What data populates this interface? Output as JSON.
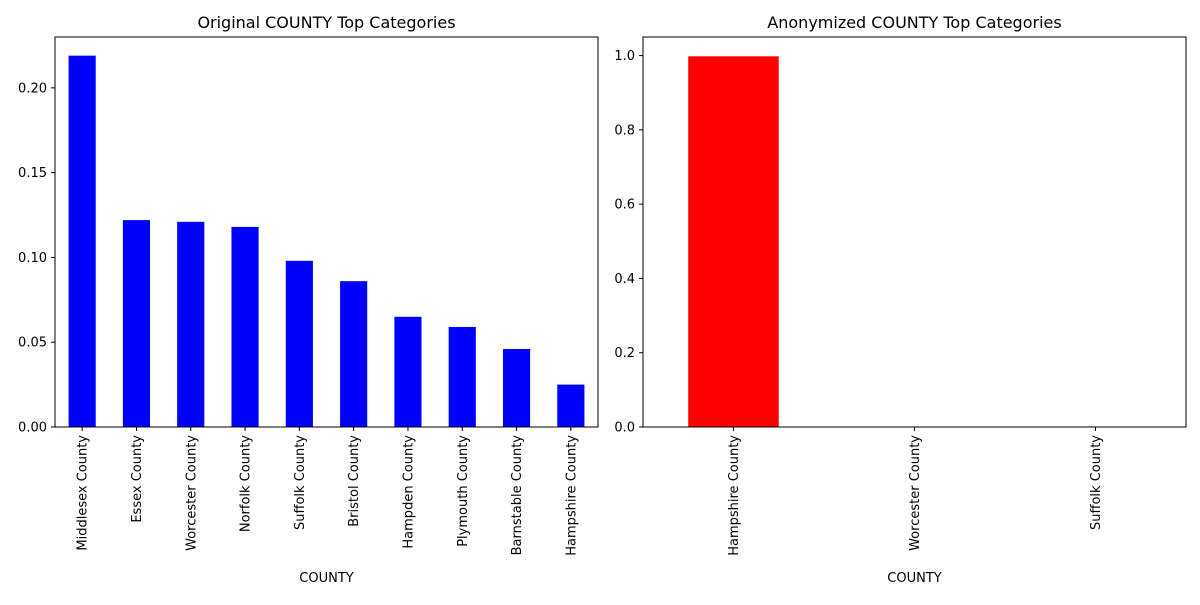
{
  "chart_data": [
    {
      "type": "bar",
      "title": "Original COUNTY Top Categories",
      "xlabel": "COUNTY",
      "ylabel": "",
      "color": "#0000ff",
      "categories": [
        "Middlesex County",
        "Essex County",
        "Worcester County",
        "Norfolk County",
        "Suffolk County",
        "Bristol County",
        "Hampden County",
        "Plymouth County",
        "Barnstable County",
        "Hampshire County"
      ],
      "values": [
        0.219,
        0.122,
        0.121,
        0.118,
        0.098,
        0.086,
        0.065,
        0.059,
        0.046,
        0.025
      ],
      "ylim": [
        0,
        0.23
      ],
      "yticks": [
        "0.00",
        "0.05",
        "0.10",
        "0.15",
        "0.20"
      ],
      "grid": false,
      "legend": "none"
    },
    {
      "type": "bar",
      "title": "Anonymized COUNTY Top Categories",
      "xlabel": "COUNTY",
      "ylabel": "",
      "color": "#ff0000",
      "categories": [
        "Hampshire County",
        "Worcester County",
        "Suffolk County"
      ],
      "values": [
        0.998,
        0.001,
        0.001
      ],
      "ylim": [
        0,
        1.05
      ],
      "yticks": [
        "0.0",
        "0.2",
        "0.4",
        "0.6",
        "0.8",
        "1.0"
      ],
      "grid": false,
      "legend": "none"
    }
  ]
}
